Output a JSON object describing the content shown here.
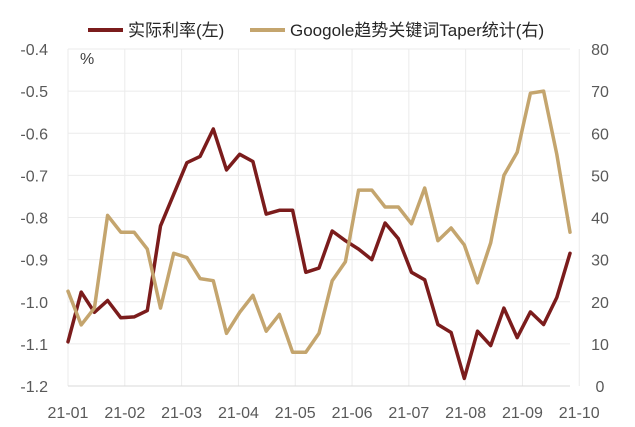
{
  "chart_data": {
    "type": "line",
    "unit_label": "%",
    "legend_placement": "top",
    "grid": true,
    "left_axis": {
      "ylim": [
        -1.2,
        -0.4
      ],
      "ticks": [
        "-1.2",
        "-1.1",
        "-1.0",
        "-0.9",
        "-0.8",
        "-0.7",
        "-0.6",
        "-0.5",
        "-0.4"
      ]
    },
    "right_axis": {
      "ylim": [
        0,
        80
      ],
      "ticks": [
        "0",
        "10",
        "20",
        "30",
        "40",
        "50",
        "60",
        "70",
        "80"
      ]
    },
    "x_axis": {
      "tick_labels": [
        "21-01",
        "21-02",
        "21-03",
        "21-04",
        "21-05",
        "21-06",
        "21-07",
        "21-08",
        "21-09",
        "21-10"
      ],
      "tick_index": [
        0,
        4.3,
        8.6,
        12.9,
        17.2,
        21.5,
        25.8,
        30.1,
        34.4,
        38.7
      ]
    },
    "series": [
      {
        "name": "实际利率(左)",
        "axis": "left",
        "color": "#7b1c1c",
        "values": [
          -1.095,
          -0.977,
          -1.025,
          -0.997,
          -1.038,
          -1.036,
          -1.021,
          -0.82,
          -0.745,
          -0.67,
          -0.655,
          -0.59,
          -0.687,
          -0.65,
          -0.667,
          -0.792,
          -0.783,
          -0.783,
          -0.93,
          -0.92,
          -0.832,
          -0.855,
          -0.875,
          -0.9,
          -0.813,
          -0.85,
          -0.93,
          -0.948,
          -1.054,
          -1.073,
          -1.182,
          -1.07,
          -1.104,
          -1.015,
          -1.085,
          -1.024,
          -1.054,
          -0.99,
          -0.885
        ]
      },
      {
        "name": "Googole趋势关键词Taper统计(右)",
        "axis": "right",
        "color": "#c4a56e",
        "values": [
          22.5,
          14.5,
          18.5,
          40.5,
          36.5,
          36.5,
          32.5,
          18.5,
          31.5,
          30.5,
          25.5,
          25.0,
          12.5,
          17.5,
          21.5,
          13.0,
          17.0,
          8.0,
          8.0,
          12.5,
          25.0,
          29.5,
          46.5,
          46.5,
          42.5,
          42.5,
          38.5,
          47.0,
          34.5,
          37.5,
          33.5,
          24.5,
          34.0,
          50.0,
          55.5,
          69.5,
          70.0,
          55.0,
          36.5
        ]
      }
    ]
  }
}
